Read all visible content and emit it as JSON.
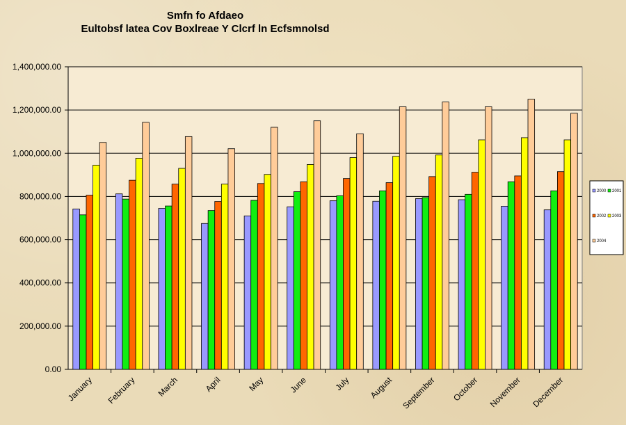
{
  "chart_data": {
    "type": "bar",
    "title": "Smfn fo Afdaeo",
    "subtitle": "Eultobsf latea Cov Boxlreae Y  Clcrf ln Ecfsmnolsd",
    "xlabel": "",
    "ylabel": "",
    "ylim": [
      0,
      1400000
    ],
    "yticks": [
      "0.00",
      "200,000.00",
      "400,000.00",
      "600,000.00",
      "800,000.00",
      "1,000,000.00",
      "1,200,000.00",
      "1,400,000.00"
    ],
    "grid": true,
    "legend_position": "right",
    "categories": [
      "January",
      "February",
      "March",
      "April",
      "May",
      "June",
      "July",
      "August",
      "September",
      "October",
      "November",
      "December"
    ],
    "series": [
      {
        "name": "2000",
        "color": "#9999ff",
        "values": [
          742000,
          812000,
          745000,
          675000,
          710000,
          752000,
          780000,
          778000,
          790000,
          785000,
          755000,
          738000
        ]
      },
      {
        "name": "2001",
        "color": "#11ee11",
        "values": [
          715000,
          788000,
          756000,
          735000,
          782000,
          822000,
          803000,
          826000,
          795000,
          810000,
          868000,
          826000
        ]
      },
      {
        "name": "2002",
        "color": "#ff6600",
        "values": [
          806000,
          875000,
          857000,
          777000,
          860000,
          868000,
          883000,
          864000,
          892000,
          912000,
          895000,
          915000
        ]
      },
      {
        "name": "2003",
        "color": "#ffff00",
        "values": [
          945000,
          977000,
          930000,
          857000,
          902000,
          948000,
          980000,
          986000,
          992000,
          1062000,
          1072000,
          1062000
        ]
      },
      {
        "name": "2004",
        "color": "#ffcc99",
        "values": [
          1050000,
          1143000,
          1077000,
          1021000,
          1120000,
          1150000,
          1090000,
          1215000,
          1237000,
          1215000,
          1250000,
          1185000
        ]
      }
    ]
  }
}
